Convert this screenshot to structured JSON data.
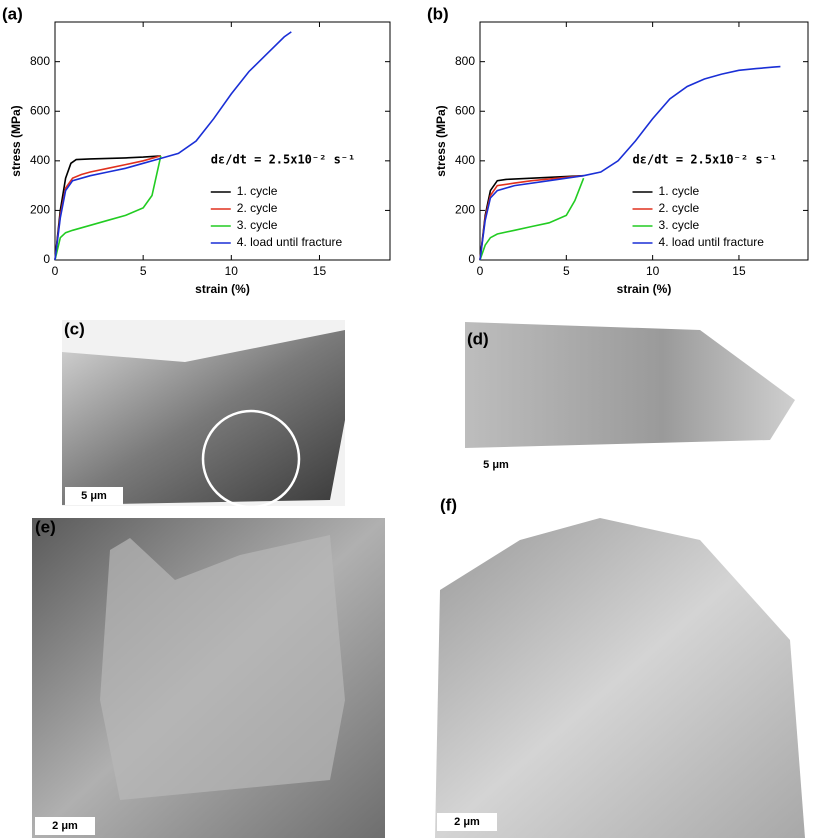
{
  "chart_data": [
    {
      "type": "line",
      "label": "(a)",
      "xlabel": "strain (%)",
      "ylabel": "stress (MPa)",
      "annotation": "dε/dt = 2.5x10⁻² s⁻¹",
      "xlim": [
        0,
        19
      ],
      "ylim": [
        0,
        960
      ],
      "xticks": [
        0,
        5,
        10,
        15
      ],
      "yticks": [
        0,
        200,
        400,
        600,
        800
      ],
      "series": [
        {
          "name": "1. cycle",
          "color": "#000000",
          "x": [
            0,
            0.3,
            0.6,
            0.9,
            1.2,
            2,
            3,
            4,
            5,
            6
          ],
          "values": [
            0,
            200,
            330,
            390,
            405,
            408,
            410,
            412,
            415,
            420
          ]
        },
        {
          "name": "2. cycle",
          "color": "#e0301e",
          "x": [
            0,
            0.3,
            0.6,
            1,
            1.5,
            2,
            3,
            4,
            5,
            6
          ],
          "values": [
            0,
            180,
            290,
            330,
            345,
            355,
            370,
            385,
            400,
            420
          ]
        },
        {
          "name": "3. cycle",
          "color": "#22cc22",
          "x": [
            0,
            0.3,
            0.6,
            1,
            2,
            3,
            4,
            5,
            5.5,
            6
          ],
          "values": [
            0,
            90,
            110,
            120,
            140,
            160,
            180,
            210,
            260,
            420
          ]
        },
        {
          "name": "4. load until fracture",
          "color": "#1a2fd6",
          "x": [
            0,
            0.3,
            0.6,
            1,
            2,
            3,
            4,
            5,
            6,
            7,
            8,
            9,
            10,
            11,
            12,
            13,
            13.4
          ],
          "values": [
            0,
            170,
            280,
            320,
            340,
            355,
            370,
            390,
            410,
            430,
            480,
            570,
            670,
            760,
            830,
            900,
            920
          ]
        }
      ]
    },
    {
      "type": "line",
      "label": "(b)",
      "xlabel": "strain (%)",
      "ylabel": "stress (MPa)",
      "annotation": "dε/dt = 2.5x10⁻² s⁻¹",
      "xlim": [
        0,
        19
      ],
      "ylim": [
        0,
        960
      ],
      "xticks": [
        0,
        5,
        10,
        15
      ],
      "yticks": [
        0,
        200,
        400,
        600,
        800
      ],
      "series": [
        {
          "name": "1. cycle",
          "color": "#000000",
          "x": [
            0,
            0.3,
            0.6,
            1,
            1.5,
            3,
            4.5,
            6
          ],
          "values": [
            0,
            180,
            280,
            320,
            325,
            330,
            335,
            340
          ]
        },
        {
          "name": "2. cycle",
          "color": "#e0301e",
          "x": [
            0,
            0.3,
            0.6,
            1,
            2,
            3,
            4.5,
            6
          ],
          "values": [
            0,
            170,
            260,
            300,
            310,
            320,
            330,
            340
          ]
        },
        {
          "name": "3. cycle",
          "color": "#22cc22",
          "x": [
            0,
            0.3,
            0.6,
            1,
            2,
            3,
            4,
            5,
            5.5,
            6
          ],
          "values": [
            0,
            60,
            90,
            105,
            120,
            135,
            150,
            180,
            240,
            330
          ]
        },
        {
          "name": "4. load until fracture",
          "color": "#1a2fd6",
          "x": [
            0,
            0.3,
            0.6,
            1,
            2,
            4,
            6,
            7,
            8,
            9,
            10,
            11,
            12,
            13,
            14,
            15,
            16,
            17,
            17.4
          ],
          "values": [
            0,
            160,
            250,
            280,
            300,
            320,
            340,
            355,
            400,
            480,
            570,
            650,
            700,
            730,
            750,
            765,
            772,
            778,
            780
          ]
        }
      ]
    }
  ],
  "panels": [
    {
      "label": "(c)",
      "scale": "5 μm"
    },
    {
      "label": "(d)",
      "scale": "5 μm"
    },
    {
      "label": "(e)",
      "scale": "2 μm"
    },
    {
      "label": "(f)",
      "scale": "2 μm"
    }
  ]
}
